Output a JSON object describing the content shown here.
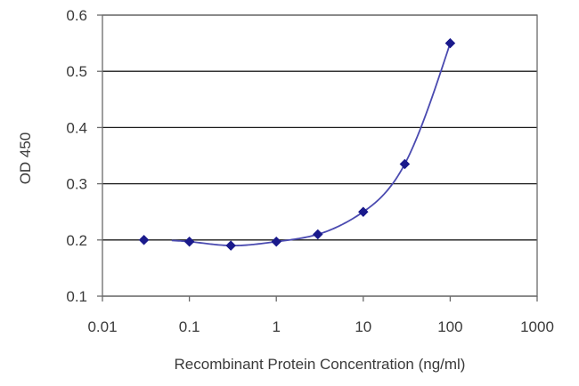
{
  "chart_data": {
    "type": "scatter",
    "title": "",
    "xlabel": "Recombinant Protein Concentration (ng/ml)",
    "ylabel": "OD 450",
    "x_scale": "log",
    "xlim": [
      0.01,
      1000
    ],
    "ylim": [
      0.1,
      0.6
    ],
    "x_ticks": [
      "0.01",
      "0.1",
      "1",
      "10",
      "100",
      "1000"
    ],
    "y_ticks": [
      "0.1",
      "0.2",
      "0.3",
      "0.4",
      "0.5",
      "0.6"
    ],
    "grid": "horizontal",
    "legend": "none",
    "series": [
      {
        "x": [
          0.03,
          0.1,
          0.3,
          1,
          3,
          10,
          30,
          100
        ],
        "y": [
          0.2,
          0.197,
          0.19,
          0.197,
          0.21,
          0.25,
          0.335,
          0.55
        ],
        "marker": "diamond",
        "line": "smooth-fit",
        "color": "#1a1a8c"
      }
    ]
  }
}
